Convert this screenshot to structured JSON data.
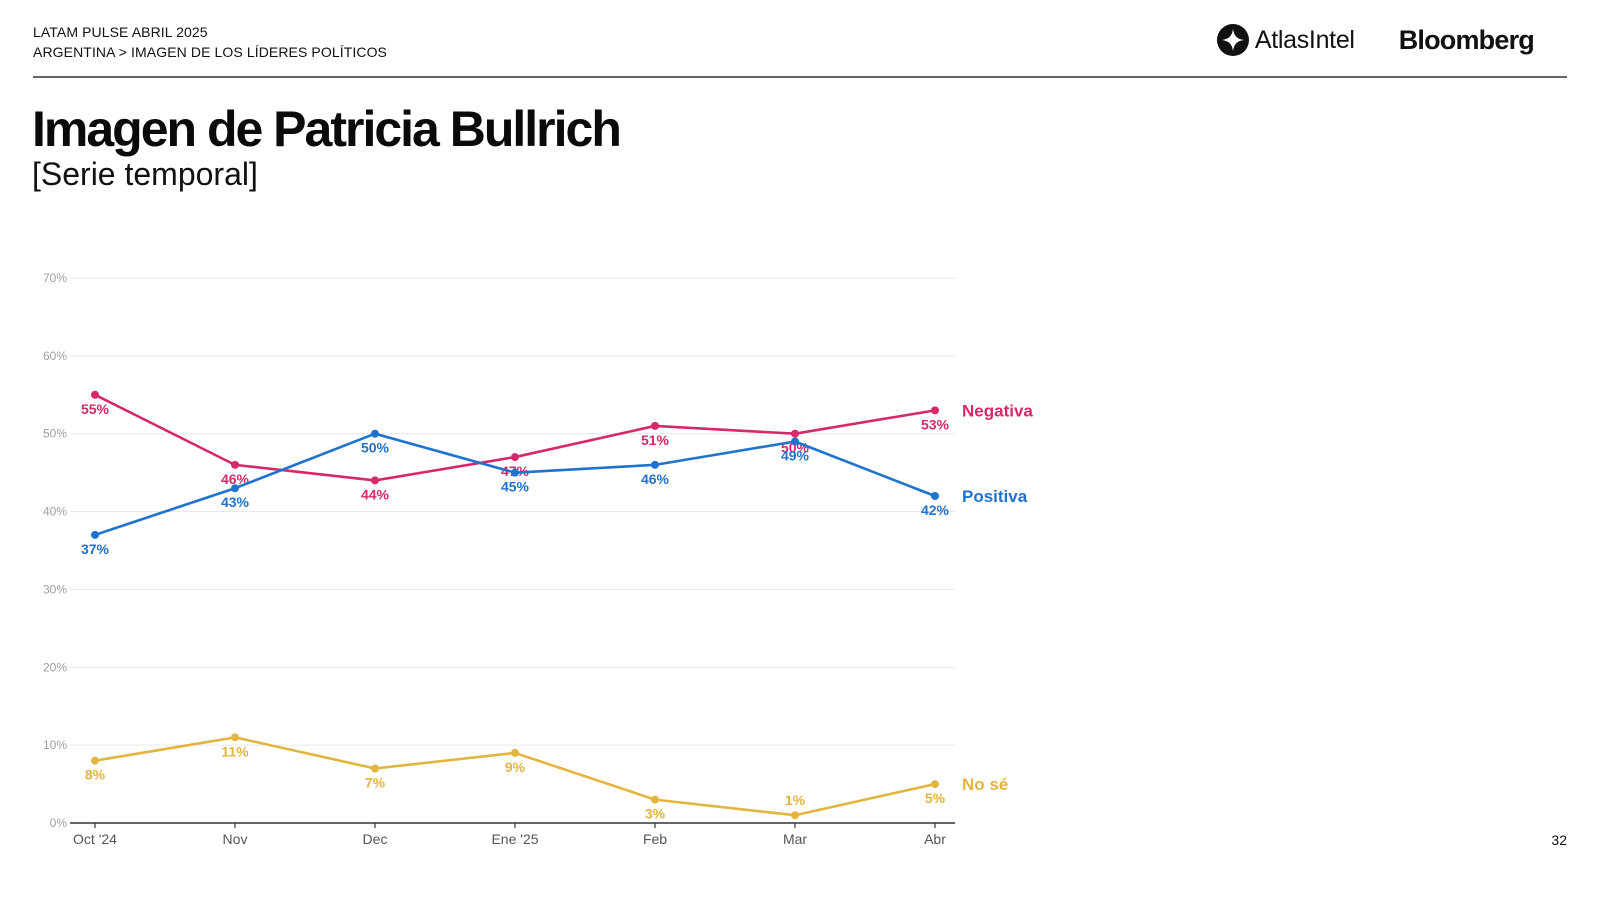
{
  "header": {
    "line1": "LATAM PULSE ABRIL 2025",
    "line2": "ARGENTINA > IMAGEN DE LOS LÍDERES POLÍTICOS"
  },
  "brand": {
    "atlas_name": "AtlasIntel",
    "bloomberg_name": "Bloomberg"
  },
  "page": {
    "title": "Imagen de Patricia Bullrich",
    "subtitle": "[Serie temporal]",
    "number": "32"
  },
  "chart_data": {
    "type": "line",
    "categories": [
      "Oct '24",
      "Nov",
      "Dec",
      "Ene '25",
      "Feb",
      "Mar",
      "Abr"
    ],
    "ylim": [
      0,
      70
    ],
    "yticks": [
      0,
      10,
      20,
      30,
      40,
      50,
      60,
      70
    ],
    "ytick_labels": [
      "0%",
      "10%",
      "20%",
      "30%",
      "40%",
      "50%",
      "60%",
      "70%"
    ],
    "grid": true,
    "series": [
      {
        "name": "Negativa",
        "color": "#d6286a",
        "values": [
          55,
          46,
          44,
          47,
          51,
          50,
          53
        ],
        "labels": [
          "55%",
          "46%",
          "44%",
          "47%",
          "51%",
          "50%",
          "53%"
        ]
      },
      {
        "name": "Positiva",
        "color": "#1e73cf",
        "values": [
          37,
          43,
          50,
          45,
          46,
          49,
          42
        ],
        "labels": [
          "37%",
          "43%",
          "50%",
          "45%",
          "46%",
          "49%",
          "42%"
        ]
      },
      {
        "name": "No sé",
        "color": "#e3b53f",
        "values": [
          8,
          11,
          7,
          9,
          3,
          1,
          5
        ],
        "labels": [
          "8%",
          "11%",
          "7%",
          "9%",
          "3%",
          "1%",
          "5%"
        ]
      }
    ]
  }
}
